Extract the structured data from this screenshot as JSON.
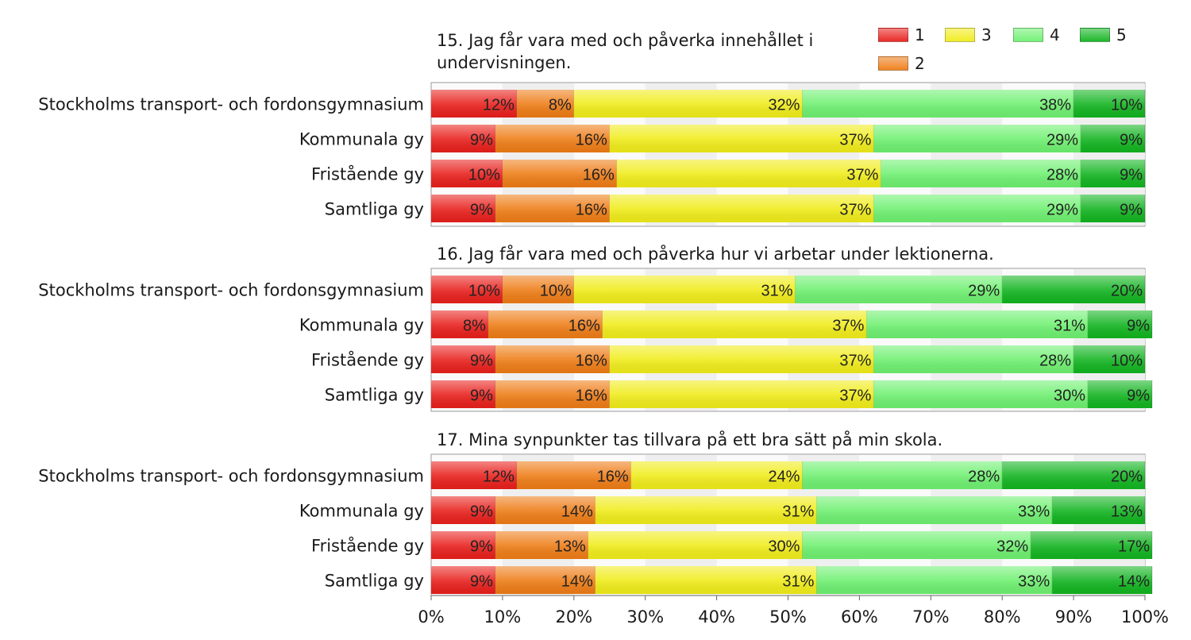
{
  "chart_data": {
    "type": "bar",
    "orientation": "horizontal",
    "stacked": "percent",
    "xlim": [
      0,
      100
    ],
    "x_ticks": [
      "0%",
      "10%",
      "20%",
      "30%",
      "40%",
      "50%",
      "60%",
      "70%",
      "80%",
      "90%",
      "100%"
    ],
    "legend": {
      "placement": "top-right",
      "entries": [
        "1",
        "2",
        "3",
        "4",
        "5"
      ]
    },
    "series_colors": [
      "#e8201c",
      "#ee7c16",
      "#f0ec1a",
      "#6ef070",
      "#12b420"
    ],
    "panels": [
      {
        "title": "15. Jag får vara med och påverka innehållet i undervisningen.",
        "title_lines": [
          "15. Jag får vara med och påverka innehållet i",
          "undervisningen."
        ],
        "categories": [
          "Stockholms transport- och fordonsgymnasium",
          "Kommunala gy",
          "Fristående gy",
          "Samtliga gy"
        ],
        "series": [
          {
            "name": "1",
            "values": [
              12,
              9,
              10,
              9
            ]
          },
          {
            "name": "2",
            "values": [
              8,
              16,
              16,
              16
            ]
          },
          {
            "name": "3",
            "values": [
              32,
              37,
              37,
              37
            ]
          },
          {
            "name": "4",
            "values": [
              38,
              29,
              28,
              29
            ]
          },
          {
            "name": "5",
            "values": [
              10,
              9,
              9,
              9
            ]
          }
        ]
      },
      {
        "title": "16. Jag får vara med och påverka hur vi arbetar under lektionerna.",
        "title_lines": [
          "16. Jag får vara med och påverka hur vi arbetar under lektionerna."
        ],
        "categories": [
          "Stockholms transport- och fordonsgymnasium",
          "Kommunala gy",
          "Fristående gy",
          "Samtliga gy"
        ],
        "series": [
          {
            "name": "1",
            "values": [
              10,
              8,
              9,
              9
            ]
          },
          {
            "name": "2",
            "values": [
              10,
              16,
              16,
              16
            ]
          },
          {
            "name": "3",
            "values": [
              31,
              37,
              37,
              37
            ]
          },
          {
            "name": "4",
            "values": [
              29,
              31,
              28,
              30
            ]
          },
          {
            "name": "5",
            "values": [
              20,
              9,
              10,
              9
            ]
          }
        ]
      },
      {
        "title": "17. Mina synpunkter tas tillvara på ett bra sätt på min skola.",
        "title_lines": [
          "17. Mina synpunkter tas tillvara på ett bra sätt på min skola."
        ],
        "categories": [
          "Stockholms transport- och fordonsgymnasium",
          "Kommunala gy",
          "Fristående gy",
          "Samtliga gy"
        ],
        "series": [
          {
            "name": "1",
            "values": [
              12,
              9,
              9,
              9
            ]
          },
          {
            "name": "2",
            "values": [
              16,
              14,
              13,
              14
            ]
          },
          {
            "name": "3",
            "values": [
              24,
              31,
              30,
              31
            ]
          },
          {
            "name": "4",
            "values": [
              28,
              33,
              32,
              33
            ]
          },
          {
            "name": "5",
            "values": [
              20,
              13,
              17,
              14
            ]
          }
        ]
      }
    ],
    "grid": true
  }
}
